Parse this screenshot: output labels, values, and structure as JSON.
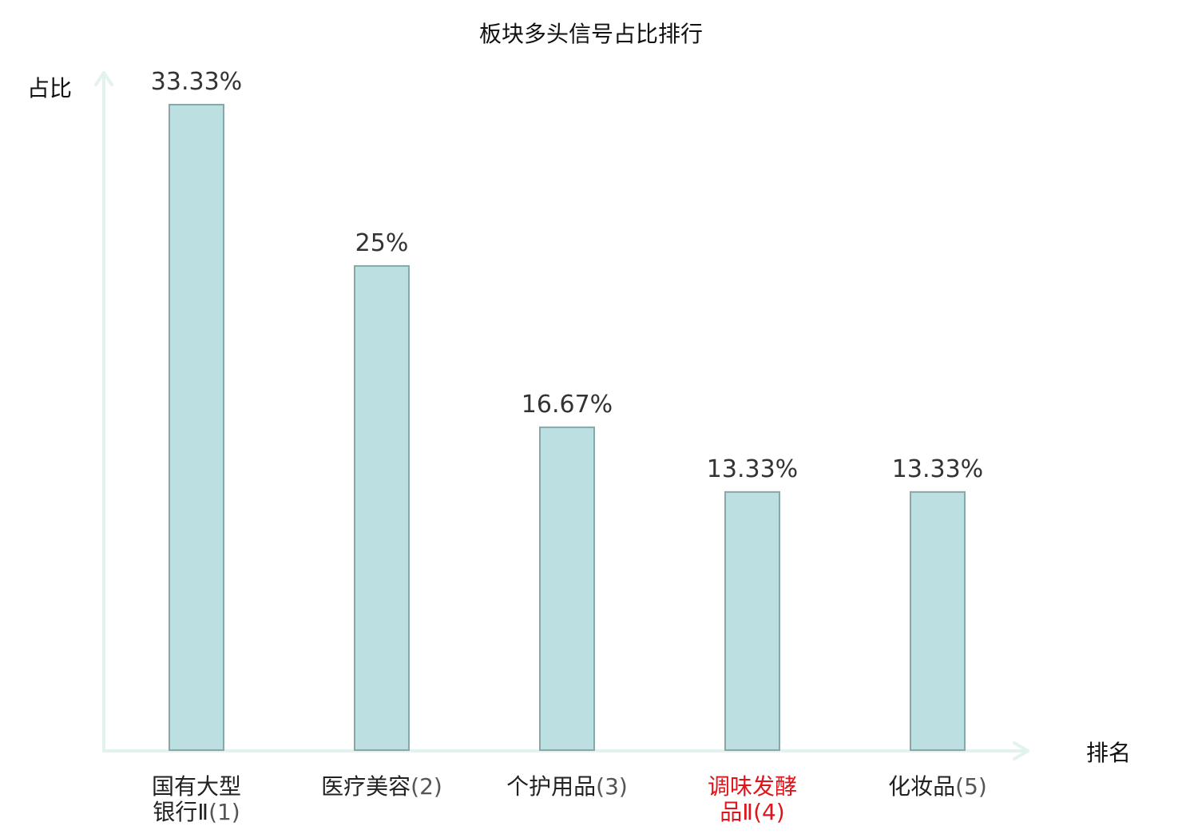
{
  "chart_data": {
    "type": "bar",
    "title": "板块多头信号占比排行",
    "ylabel": "占比",
    "xlabel": "排名",
    "ylim": [
      0,
      33.33
    ],
    "grid": false,
    "categories": [
      {
        "name": "国有大型",
        "name2": "银行Ⅱ",
        "rank": "(1)",
        "highlight": false
      },
      {
        "name": "医疗美容",
        "name2": "",
        "rank": "(2)",
        "highlight": false
      },
      {
        "name": "个护用品",
        "name2": "",
        "rank": "(3)",
        "highlight": false
      },
      {
        "name": "调味发酵",
        "name2": "品Ⅱ",
        "rank": "(4)",
        "highlight": true
      },
      {
        "name": "化妆品",
        "name2": "",
        "rank": "(5)",
        "highlight": false
      }
    ],
    "values": [
      33.33,
      25,
      16.67,
      13.33,
      13.33
    ],
    "value_labels": [
      "33.33%",
      "25%",
      "16.67%",
      "13.33%",
      "13.33%"
    ]
  },
  "colors": {
    "bar_fill": "#bce0e2",
    "bar_stroke": "#8aa6a8",
    "axis": "#e2f2ef",
    "text": "#333333",
    "label": "#222222",
    "highlight": "#e0141b",
    "rank": "#555555"
  }
}
